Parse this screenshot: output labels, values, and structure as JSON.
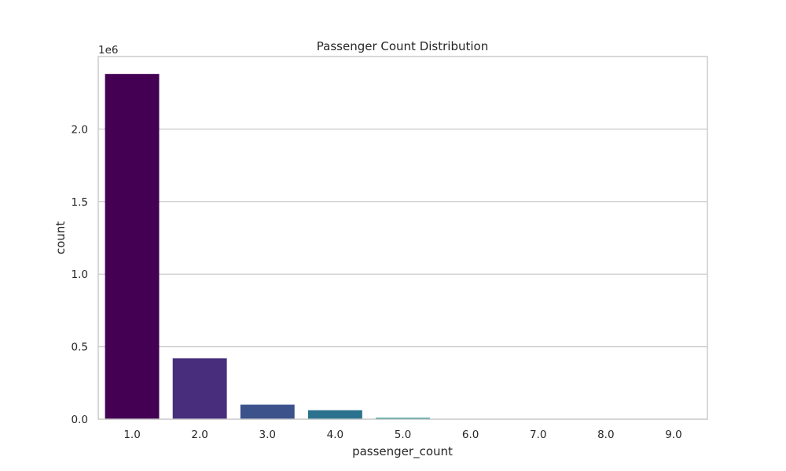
{
  "chart_data": {
    "type": "bar",
    "title": "Passenger Count Distribution",
    "xlabel": "passenger_count",
    "ylabel": "count",
    "y_offset_label": "1e6",
    "categories": [
      "1.0",
      "2.0",
      "3.0",
      "4.0",
      "5.0",
      "6.0",
      "7.0",
      "8.0",
      "9.0"
    ],
    "values": [
      2380000,
      420000,
      100000,
      62000,
      10000,
      2000,
      200,
      100,
      50
    ],
    "colors": [
      "#440154",
      "#472d7b",
      "#3b528b",
      "#2c728e",
      "#21918c",
      "#28ae80",
      "#5ec962",
      "#addc30",
      "#fde725"
    ],
    "ylim": [
      0,
      2500000
    ],
    "yticks": [
      0,
      500000,
      1000000,
      1500000,
      2000000
    ],
    "ytick_labels": [
      "0.0",
      "0.5",
      "1.0",
      "1.5",
      "2.0"
    ],
    "grid": true,
    "legend": "none"
  }
}
